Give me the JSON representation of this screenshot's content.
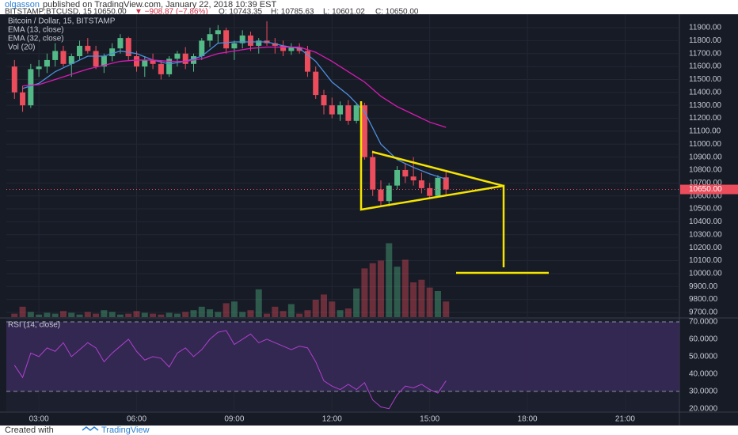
{
  "header": {
    "author": "olgasson",
    "published": "published on TradingView.com, January 22, 2018 10:39 EST",
    "symbol": "BITSTAMP:BTCUSD, 15",
    "last": "10650.00",
    "change": "▼ −908.87 (−7.86%)",
    "open": "O: 10743.35",
    "high": "H: 10785.63",
    "low": "L: 10601.02",
    "close": "C: 10650.00"
  },
  "footer": {
    "created": "Created with",
    "brand": "TradingView"
  },
  "chart_data": {
    "type": "candlestick",
    "title": "Bitcoin / Dollar, 15, BITSTAMP",
    "x": [
      "02:15",
      "02:30",
      "02:45",
      "03:00",
      "03:15",
      "03:30",
      "03:45",
      "04:00",
      "04:15",
      "04:30",
      "04:45",
      "05:00",
      "05:15",
      "05:30",
      "05:45",
      "06:00",
      "06:15",
      "06:30",
      "06:45",
      "07:00",
      "07:15",
      "07:30",
      "07:45",
      "08:00",
      "08:15",
      "08:30",
      "08:45",
      "09:00",
      "09:15",
      "09:30",
      "09:45",
      "10:00",
      "10:15",
      "10:30",
      "10:45",
      "11:00",
      "11:15",
      "11:30",
      "11:45",
      "12:00",
      "12:15",
      "12:30",
      "12:45",
      "13:00",
      "13:15",
      "13:30",
      "13:45",
      "14:00",
      "14:15",
      "14:30",
      "14:45",
      "15:00",
      "15:15",
      "15:30"
    ],
    "open": [
      11600,
      11400,
      11300,
      11580,
      11600,
      11650,
      11720,
      11620,
      11680,
      11760,
      11720,
      11600,
      11680,
      11740,
      11820,
      11680,
      11600,
      11650,
      11620,
      11540,
      11660,
      11700,
      11620,
      11680,
      11800,
      11850,
      11880,
      11740,
      11780,
      11840,
      11760,
      11800,
      11780,
      11760,
      11720,
      11750,
      11720,
      11560,
      11380,
      11300,
      11230,
      11300,
      11180,
      11300,
      10900,
      10650,
      10560,
      10680,
      10800,
      10750,
      10720,
      10660,
      10600,
      10743.35
    ],
    "high": [
      11650,
      11450,
      11620,
      11650,
      11700,
      11780,
      11760,
      11700,
      11800,
      11820,
      11760,
      11700,
      11780,
      11850,
      11830,
      11720,
      11680,
      11700,
      11650,
      11680,
      11720,
      11750,
      11700,
      11820,
      11900,
      11920,
      11900,
      11800,
      11880,
      11870,
      11820,
      11950,
      11820,
      11800,
      11780,
      11780,
      11760,
      11600,
      11420,
      11360,
      11330,
      11340,
      11320,
      11320,
      10950,
      10720,
      10700,
      10830,
      10850,
      10900,
      10780,
      10700,
      10760,
      10785.63
    ],
    "low": [
      11350,
      11250,
      11280,
      11520,
      11550,
      11600,
      11600,
      11520,
      11650,
      11700,
      11580,
      11550,
      11640,
      11700,
      11650,
      11560,
      11520,
      11580,
      11500,
      11520,
      11600,
      11580,
      11560,
      11650,
      11750,
      11780,
      11700,
      11650,
      11740,
      11720,
      11700,
      11760,
      11700,
      11680,
      11690,
      11700,
      11520,
      11350,
      11230,
      11200,
      11180,
      11150,
      11160,
      10880,
      10600,
      10520,
      10520,
      10650,
      10700,
      10680,
      10620,
      10580,
      10590,
      10601.02
    ],
    "close": [
      11400,
      11300,
      11580,
      11600,
      11650,
      11720,
      11620,
      11680,
      11760,
      11720,
      11600,
      11680,
      11740,
      11820,
      11680,
      11600,
      11650,
      11620,
      11540,
      11660,
      11700,
      11620,
      11680,
      11800,
      11850,
      11880,
      11740,
      11780,
      11840,
      11760,
      11800,
      11780,
      11760,
      11720,
      11750,
      11720,
      11560,
      11380,
      11300,
      11230,
      11300,
      11180,
      11300,
      10900,
      10650,
      10560,
      10680,
      10800,
      10750,
      10720,
      10660,
      10600,
      10740,
      10650
    ],
    "up_color": "#53b987",
    "down_color": "#eb4d5c",
    "xlim": [
      "02:00",
      "22:40"
    ],
    "xticks": [
      "03:00",
      "06:00",
      "09:00",
      "12:00",
      "15:00",
      "18:00",
      "21:00"
    ],
    "ylim": [
      9663,
      12004
    ],
    "yticks": [
      {
        "value": 9700,
        "label": "9700.00"
      },
      {
        "value": 9800,
        "label": "9800.00"
      },
      {
        "value": 9900,
        "label": "9900.00"
      },
      {
        "value": 10000,
        "label": "10000.00"
      },
      {
        "value": 10100,
        "label": "10100.00"
      },
      {
        "value": 10200,
        "label": "10200.00"
      },
      {
        "value": 10300,
        "label": "10300.00"
      },
      {
        "value": 10400,
        "label": "10400.00"
      },
      {
        "value": 10500,
        "label": "10500.00"
      },
      {
        "value": 10600,
        "label": "10600.00"
      },
      {
        "value": 10700,
        "label": "10700.00"
      },
      {
        "value": 10800,
        "label": "10800.00"
      },
      {
        "value": 10900,
        "label": "10900.00"
      },
      {
        "value": 11000,
        "label": "11000.00"
      },
      {
        "value": 11100,
        "label": "11100.00"
      },
      {
        "value": 11200,
        "label": "11200.00"
      },
      {
        "value": 11300,
        "label": "11300.00"
      },
      {
        "value": 11400,
        "label": "11400.00"
      },
      {
        "value": 11500,
        "label": "11500.00"
      },
      {
        "value": 11600,
        "label": "11600.00"
      },
      {
        "value": 11700,
        "label": "11700.00"
      },
      {
        "value": 11800,
        "label": "11800.00"
      },
      {
        "value": 11900,
        "label": "11900.00"
      }
    ],
    "grid": true,
    "last_price": {
      "value": 10650,
      "label": "10650.00"
    },
    "series": [
      {
        "name": "EMA (13, close)",
        "color": "#4d8fe0",
        "x": [
          "02:30",
          "03:00",
          "03:30",
          "04:00",
          "04:30",
          "05:00",
          "05:30",
          "06:00",
          "06:30",
          "07:00",
          "07:30",
          "08:00",
          "08:30",
          "09:00",
          "09:30",
          "10:00",
          "10:30",
          "11:00",
          "11:30",
          "12:00",
          "12:30",
          "13:00",
          "13:30",
          "14:00",
          "14:30",
          "15:00",
          "15:30"
        ],
        "values": [
          11430,
          11470,
          11560,
          11620,
          11680,
          11680,
          11720,
          11700,
          11650,
          11620,
          11640,
          11680,
          11780,
          11790,
          11790,
          11790,
          11760,
          11740,
          11640,
          11480,
          11380,
          11250,
          11000,
          10880,
          10820,
          10770,
          10730
        ]
      },
      {
        "name": "EMA (32, close)",
        "color": "#d81bb5",
        "x": [
          "02:30",
          "03:00",
          "03:30",
          "04:00",
          "04:30",
          "05:00",
          "05:30",
          "06:00",
          "06:30",
          "07:00",
          "07:30",
          "08:00",
          "08:30",
          "09:00",
          "09:30",
          "10:00",
          "10:30",
          "11:00",
          "11:30",
          "12:00",
          "12:30",
          "13:00",
          "13:30",
          "14:00",
          "14:30",
          "15:00",
          "15:30"
        ],
        "values": [
          11450,
          11460,
          11500,
          11540,
          11580,
          11610,
          11640,
          11650,
          11650,
          11640,
          11640,
          11660,
          11700,
          11720,
          11740,
          11750,
          11750,
          11750,
          11710,
          11640,
          11560,
          11480,
          11370,
          11290,
          11230,
          11170,
          11130
        ]
      }
    ],
    "volume": {
      "name": "Vol (20)",
      "ylim": [
        0,
        1000
      ],
      "values": [
        40,
        120,
        60,
        30,
        50,
        40,
        70,
        50,
        30,
        60,
        40,
        80,
        60,
        30,
        40,
        70,
        50,
        40,
        30,
        50,
        40,
        60,
        80,
        120,
        90,
        60,
        160,
        180,
        60,
        80,
        320,
        40,
        120,
        70,
        150,
        40,
        80,
        200,
        260,
        180,
        80,
        100,
        330,
        560,
        620,
        650,
        850,
        580,
        660,
        400,
        430,
        340,
        300,
        180
      ]
    },
    "rsi": {
      "name": "RSI (14, close)",
      "color": "#b03fcf",
      "ylim": [
        18.5,
        71.8
      ],
      "bands": [
        30,
        70
      ],
      "yticks": [
        {
          "value": 20,
          "label": "20.0000"
        },
        {
          "value": 30,
          "label": "30.0000"
        },
        {
          "value": 40,
          "label": "40.0000"
        },
        {
          "value": 50,
          "label": "50.0000"
        },
        {
          "value": 60,
          "label": "60.0000"
        },
        {
          "value": 70,
          "label": "70.0000"
        }
      ],
      "values": [
        45,
        38,
        52,
        50,
        55,
        53,
        58,
        50,
        54,
        58,
        55,
        47,
        52,
        56,
        60,
        53,
        48,
        50,
        49,
        44,
        52,
        55,
        50,
        54,
        60,
        64,
        65,
        57,
        60,
        63,
        58,
        60,
        58,
        56,
        54,
        56,
        55,
        47,
        36,
        33,
        31,
        34,
        31,
        35,
        25,
        21,
        20,
        28,
        33,
        32,
        34,
        31,
        29,
        36
      ]
    }
  }
}
